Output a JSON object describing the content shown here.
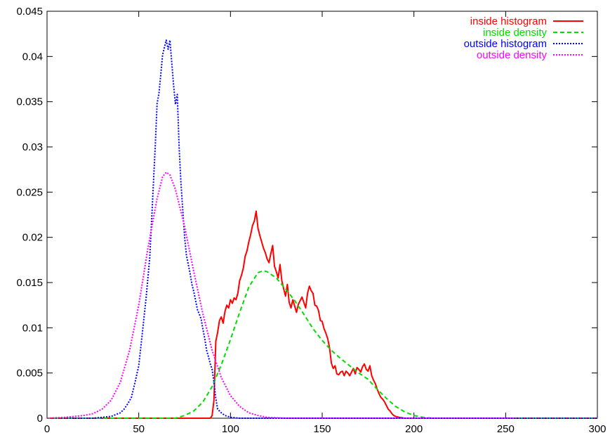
{
  "chart_data": {
    "type": "line",
    "title": "",
    "xlabel": "",
    "ylabel": "",
    "xlim": [
      0,
      300
    ],
    "ylim": [
      0,
      0.045
    ],
    "grid": false,
    "legend_position": "top-right",
    "x_ticks": [
      "0",
      "50",
      "100",
      "150",
      "200",
      "250",
      "300"
    ],
    "y_ticks": [
      "0",
      "0.005",
      "0.01",
      "0.015",
      "0.02",
      "0.025",
      "0.03",
      "0.035",
      "0.04",
      "0.045"
    ],
    "series": [
      {
        "name": "inside histogram",
        "color": "#ff0000",
        "style": "solid",
        "points": [
          [
            0,
            0
          ],
          [
            89,
            0
          ],
          [
            90,
            0.0003
          ],
          [
            91,
            0.002
          ],
          [
            92,
            0.0085
          ],
          [
            93,
            0.0095
          ],
          [
            94,
            0.0108
          ],
          [
            95,
            0.0112
          ],
          [
            96,
            0.0105
          ],
          [
            97,
            0.0118
          ],
          [
            98,
            0.0125
          ],
          [
            99,
            0.0122
          ],
          [
            100,
            0.0131
          ],
          [
            101,
            0.0127
          ],
          [
            102,
            0.0133
          ],
          [
            103,
            0.0131
          ],
          [
            104,
            0.0138
          ],
          [
            105,
            0.0152
          ],
          [
            106,
            0.0158
          ],
          [
            107,
            0.0166
          ],
          [
            108,
            0.0179
          ],
          [
            109,
            0.0185
          ],
          [
            110,
            0.0195
          ],
          [
            111,
            0.0203
          ],
          [
            112,
            0.0213
          ],
          [
            113,
            0.0218
          ],
          [
            114,
            0.0229
          ],
          [
            115,
            0.021
          ],
          [
            116,
            0.0202
          ],
          [
            117,
            0.0195
          ],
          [
            118,
            0.0188
          ],
          [
            119,
            0.0183
          ],
          [
            120,
            0.0176
          ],
          [
            121,
            0.0172
          ],
          [
            122,
            0.0182
          ],
          [
            123,
            0.0191
          ],
          [
            124,
            0.0168
          ],
          [
            125,
            0.0162
          ],
          [
            126,
            0.0155
          ],
          [
            127,
            0.017
          ],
          [
            128,
            0.0152
          ],
          [
            129,
            0.0143
          ],
          [
            130,
            0.0135
          ],
          [
            131,
            0.0148
          ],
          [
            132,
            0.0128
          ],
          [
            133,
            0.0122
          ],
          [
            134,
            0.0131
          ],
          [
            135,
            0.0124
          ],
          [
            136,
            0.0117
          ],
          [
            137,
            0.0126
          ],
          [
            138,
            0.013
          ],
          [
            139,
            0.0134
          ],
          [
            140,
            0.0128
          ],
          [
            141,
            0.0122
          ],
          [
            142,
            0.0138
          ],
          [
            143,
            0.0146
          ],
          [
            144,
            0.0141
          ],
          [
            145,
            0.0138
          ],
          [
            146,
            0.0125
          ],
          [
            147,
            0.0124
          ],
          [
            148,
            0.0119
          ],
          [
            149,
            0.0108
          ],
          [
            150,
            0.0107
          ],
          [
            151,
            0.0099
          ],
          [
            152,
            0.0094
          ],
          [
            153,
            0.0088
          ],
          [
            154,
            0.0078
          ],
          [
            155,
            0.0061
          ],
          [
            156,
            0.0055
          ],
          [
            157,
            0.0058
          ],
          [
            158,
            0.0049
          ],
          [
            159,
            0.0048
          ],
          [
            160,
            0.0051
          ],
          [
            161,
            0.0052
          ],
          [
            162,
            0.0047
          ],
          [
            163,
            0.0052
          ],
          [
            164,
            0.005
          ],
          [
            165,
            0.0047
          ],
          [
            166,
            0.0051
          ],
          [
            167,
            0.0055
          ],
          [
            168,
            0.0049
          ],
          [
            169,
            0.0056
          ],
          [
            170,
            0.0054
          ],
          [
            171,
            0.0051
          ],
          [
            172,
            0.0057
          ],
          [
            173,
            0.006
          ],
          [
            174,
            0.0054
          ],
          [
            175,
            0.0052
          ],
          [
            176,
            0.0058
          ],
          [
            177,
            0.0047
          ],
          [
            178,
            0.0042
          ],
          [
            179,
            0.0038
          ],
          [
            180,
            0.0032
          ],
          [
            181,
            0.0027
          ],
          [
            182,
            0.0023
          ],
          [
            183,
            0.0021
          ],
          [
            184,
            0.0018
          ],
          [
            185,
            0.0014
          ],
          [
            186,
            0.001
          ],
          [
            187,
            0.0008
          ],
          [
            188,
            0.0005
          ],
          [
            189,
            0.0003
          ],
          [
            190,
            0.0002
          ],
          [
            192,
            0.0001
          ],
          [
            195,
            0
          ],
          [
            300,
            0
          ]
        ]
      },
      {
        "name": "inside density",
        "color": "#00dd00",
        "style": "dashed",
        "points": [
          [
            0,
            0
          ],
          [
            40,
            0
          ],
          [
            50,
            0
          ],
          [
            60,
            0
          ],
          [
            70,
            0
          ],
          [
            75,
            0.0003
          ],
          [
            80,
            0.0008
          ],
          [
            85,
            0.0018
          ],
          [
            90,
            0.0035
          ],
          [
            95,
            0.0059
          ],
          [
            100,
            0.0087
          ],
          [
            105,
            0.0117
          ],
          [
            110,
            0.0145
          ],
          [
            115,
            0.0161
          ],
          [
            118,
            0.0163
          ],
          [
            120,
            0.0162
          ],
          [
            125,
            0.0155
          ],
          [
            130,
            0.0143
          ],
          [
            135,
            0.013
          ],
          [
            140,
            0.0115
          ],
          [
            145,
            0.0099
          ],
          [
            150,
            0.0086
          ],
          [
            155,
            0.0075
          ],
          [
            160,
            0.0066
          ],
          [
            165,
            0.0058
          ],
          [
            170,
            0.005
          ],
          [
            175,
            0.0043
          ],
          [
            180,
            0.0032
          ],
          [
            185,
            0.0022
          ],
          [
            190,
            0.0013
          ],
          [
            195,
            0.0007
          ],
          [
            200,
            0.0003
          ],
          [
            205,
            0.0001
          ],
          [
            210,
            0
          ],
          [
            250,
            0
          ],
          [
            300,
            0
          ]
        ]
      },
      {
        "name": "outside histogram",
        "color": "#0000ff",
        "style": "dotted",
        "points": [
          [
            0,
            0
          ],
          [
            25,
            0
          ],
          [
            30,
            0.0001
          ],
          [
            35,
            0.0002
          ],
          [
            40,
            0.0006
          ],
          [
            42,
            0.001
          ],
          [
            44,
            0.0016
          ],
          [
            46,
            0.0023
          ],
          [
            48,
            0.004
          ],
          [
            50,
            0.0058
          ],
          [
            52,
            0.0095
          ],
          [
            54,
            0.0133
          ],
          [
            56,
            0.0178
          ],
          [
            57,
            0.0218
          ],
          [
            58,
            0.026
          ],
          [
            59,
            0.0301
          ],
          [
            60,
            0.0348
          ],
          [
            61,
            0.0359
          ],
          [
            62,
            0.038
          ],
          [
            63,
            0.0402
          ],
          [
            64,
            0.041
          ],
          [
            65,
            0.0418
          ],
          [
            66,
            0.0408
          ],
          [
            67,
            0.0418
          ],
          [
            68,
            0.0393
          ],
          [
            69,
            0.0368
          ],
          [
            70,
            0.0347
          ],
          [
            71,
            0.0358
          ],
          [
            72,
            0.03
          ],
          [
            73,
            0.026
          ],
          [
            74,
            0.023
          ],
          [
            75,
            0.02
          ],
          [
            76,
            0.018
          ],
          [
            77,
            0.017
          ],
          [
            78,
            0.016
          ],
          [
            79,
            0.0148
          ],
          [
            80,
            0.014
          ],
          [
            81,
            0.013
          ],
          [
            82,
            0.012
          ],
          [
            83,
            0.0115
          ],
          [
            84,
            0.011
          ],
          [
            85,
            0.0098
          ],
          [
            86,
            0.0088
          ],
          [
            87,
            0.0075
          ],
          [
            88,
            0.0068
          ],
          [
            89,
            0.006
          ],
          [
            90,
            0.0054
          ],
          [
            91,
            0.004
          ],
          [
            92,
            0.0022
          ],
          [
            93,
            0.001
          ],
          [
            95,
            0.0006
          ],
          [
            97,
            0.0003
          ],
          [
            100,
            0.0001
          ],
          [
            105,
            0
          ],
          [
            300,
            0
          ]
        ]
      },
      {
        "name": "outside density",
        "color": "#ff00ff",
        "style": "dotted",
        "points": [
          [
            0,
            0
          ],
          [
            10,
            0.0001
          ],
          [
            20,
            0.0003
          ],
          [
            25,
            0.0005
          ],
          [
            30,
            0.001
          ],
          [
            35,
            0.002
          ],
          [
            40,
            0.004
          ],
          [
            45,
            0.0075
          ],
          [
            50,
            0.0125
          ],
          [
            55,
            0.0188
          ],
          [
            60,
            0.0243
          ],
          [
            63,
            0.0267
          ],
          [
            65,
            0.0272
          ],
          [
            67,
            0.0269
          ],
          [
            70,
            0.0253
          ],
          [
            75,
            0.0212
          ],
          [
            80,
            0.0162
          ],
          [
            85,
            0.0115
          ],
          [
            90,
            0.0075
          ],
          [
            95,
            0.0045
          ],
          [
            100,
            0.0025
          ],
          [
            105,
            0.0013
          ],
          [
            110,
            0.0006
          ],
          [
            115,
            0.0003
          ],
          [
            120,
            0.0001
          ],
          [
            130,
            0
          ],
          [
            200,
            0
          ],
          [
            255,
            0
          ]
        ]
      }
    ]
  }
}
